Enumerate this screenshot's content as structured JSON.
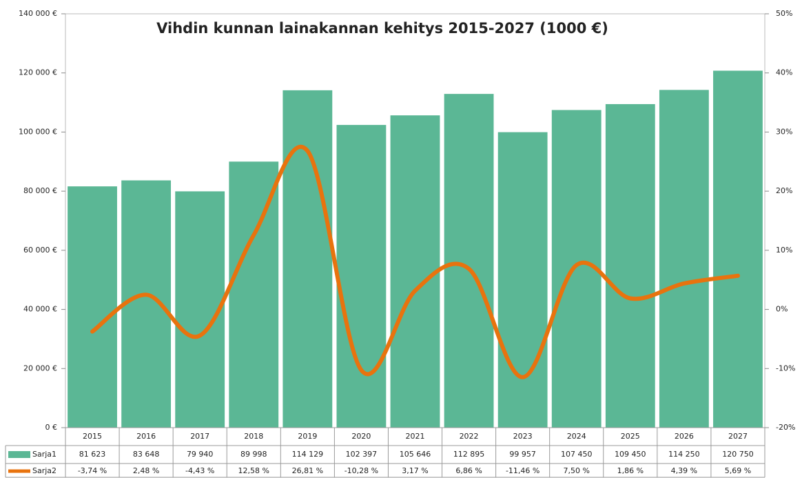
{
  "chart_data": {
    "type": "bar_line",
    "title": "Vihdin kunnan lainakannan kehitys 2015-2027 (1000 €)",
    "categories": [
      "2015",
      "2016",
      "2017",
      "2018",
      "2019",
      "2020",
      "2021",
      "2022",
      "2023",
      "2024",
      "2025",
      "2026",
      "2027"
    ],
    "series": [
      {
        "name": "Sarja1",
        "color": "#5bb795",
        "type": "bar",
        "values": [
          81623,
          83648,
          79940,
          89998,
          114129,
          102397,
          105646,
          112895,
          99957,
          107450,
          109450,
          114250,
          120750
        ],
        "value_labels": [
          "81 623",
          "83 648",
          "79 940",
          "89 998",
          "114 129",
          "102 397",
          "105 646",
          "112 895",
          "99 957",
          "107 450",
          "109 450",
          "114 250",
          "120 750"
        ]
      },
      {
        "name": "Sarja2",
        "color": "#e8730e",
        "type": "line",
        "axis": "y2",
        "smooth": true,
        "values": [
          -3.74,
          2.48,
          -4.43,
          12.58,
          26.81,
          -10.28,
          3.17,
          6.86,
          -11.46,
          7.5,
          1.86,
          4.39,
          5.69
        ],
        "value_labels": [
          "-3,74 %",
          "2,48 %",
          "-4,43 %",
          "12,58 %",
          "26,81 %",
          "-10,28 %",
          "3,17 %",
          "6,86 %",
          "-11,46 %",
          "7,50 %",
          "1,86 %",
          "4,39 %",
          "5,69 %"
        ]
      }
    ],
    "ylim": [
      0,
      140000
    ],
    "yticks": [
      {
        "value": 0,
        "label": "0 €"
      },
      {
        "value": 20000,
        "label": "20 000 €"
      },
      {
        "value": 40000,
        "label": "40 000 €"
      },
      {
        "value": 60000,
        "label": "60 000 €"
      },
      {
        "value": 80000,
        "label": "80 000 €"
      },
      {
        "value": 100000,
        "label": "100 000 €"
      },
      {
        "value": 120000,
        "label": "120 000 €"
      },
      {
        "value": 140000,
        "label": "140 000 €"
      }
    ],
    "y2lim": [
      -20,
      50
    ],
    "y2ticks": [
      {
        "value": -20,
        "label": "-20%"
      },
      {
        "value": -10,
        "label": "-10%"
      },
      {
        "value": 0,
        "label": "0%"
      },
      {
        "value": 10,
        "label": "10%"
      },
      {
        "value": 20,
        "label": "20%"
      },
      {
        "value": 30,
        "label": "30%"
      },
      {
        "value": 40,
        "label": "40%"
      },
      {
        "value": 50,
        "label": "50%"
      }
    ],
    "grid": false
  }
}
